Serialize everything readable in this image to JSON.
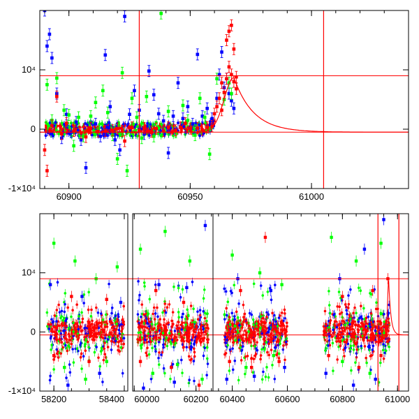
{
  "chart_data": [
    {
      "type": "scatter",
      "title": "",
      "xlabel": "",
      "ylabel": "",
      "xlim": [
        60888,
        61040
      ],
      "ylim": [
        -10000,
        20000
      ],
      "x_ticks": [
        {
          "value": 60900,
          "label": "60900"
        },
        {
          "value": 60950,
          "label": "60950"
        },
        {
          "value": 61000,
          "label": "61000"
        }
      ],
      "y_ticks": [
        {
          "value": 10000,
          "label": "10⁴"
        },
        {
          "value": 0,
          "label": "0"
        },
        {
          "value": -10000,
          "label": "-1×10⁴"
        }
      ],
      "reference_lines": {
        "horizontal": [
          9000,
          -500
        ],
        "vertical": [
          60929,
          61005
        ]
      },
      "model_curve": {
        "baseline": -500,
        "peak_x": 60968,
        "peak_y": 8700,
        "rise_scale": 4,
        "decay_scale": 8,
        "color": "#ff0000"
      },
      "series": [
        {
          "color": "#0000ff",
          "points": [
            [
              60890,
              20000
            ],
            [
              60891,
              14000
            ],
            [
              60892,
              16000
            ],
            [
              60893,
              12000
            ],
            [
              60895,
              6000
            ],
            [
              60897,
              -1500
            ],
            [
              60899,
              2500
            ],
            [
              60901,
              -500
            ],
            [
              60903,
              1200
            ],
            [
              60905,
              -1800
            ],
            [
              60907,
              -6500
            ],
            [
              60909,
              1200
            ],
            [
              60911,
              900
            ],
            [
              60913,
              -1200
            ],
            [
              60915,
              12500
            ],
            [
              60917,
              3800
            ],
            [
              60919,
              -1800
            ],
            [
              60921,
              -3500
            ],
            [
              60923,
              19000
            ],
            [
              60925,
              2500
            ],
            [
              60927,
              6500
            ],
            [
              60929,
              3200
            ],
            [
              60931,
              -800
            ],
            [
              60933,
              9800
            ],
            [
              60935,
              5800
            ],
            [
              60937,
              2600
            ],
            [
              60939,
              1400
            ],
            [
              60941,
              -4000
            ],
            [
              60943,
              2200
            ],
            [
              60945,
              7800
            ],
            [
              60947,
              1800
            ],
            [
              60949,
              3800
            ],
            [
              60951,
              900
            ],
            [
              60953,
              12600
            ],
            [
              60955,
              2200
            ],
            [
              60957,
              3500
            ],
            [
              60959,
              1800
            ],
            [
              60961,
              5200
            ],
            [
              60962,
              9200
            ],
            [
              60963,
              13000
            ],
            [
              60964,
              7000
            ],
            [
              60965,
              8500
            ],
            [
              60966,
              6000
            ],
            [
              60967,
              4800
            ],
            [
              60968,
              3500
            ]
          ]
        },
        {
          "color": "#00ff00",
          "points": [
            [
              60891,
              7500
            ],
            [
              60893,
              1500
            ],
            [
              60895,
              8600
            ],
            [
              60898,
              3200
            ],
            [
              60900,
              2400
            ],
            [
              60902,
              -2800
            ],
            [
              60904,
              2000
            ],
            [
              60906,
              -1200
            ],
            [
              60909,
              2200
            ],
            [
              60911,
              4500
            ],
            [
              60914,
              6500
            ],
            [
              60916,
              2800
            ],
            [
              60918,
              -1000
            ],
            [
              60920,
              -5000
            ],
            [
              60922,
              9500
            ],
            [
              60924,
              -7000
            ],
            [
              60926,
              5200
            ],
            [
              60928,
              2000
            ],
            [
              60930,
              -1500
            ],
            [
              60932,
              5500
            ],
            [
              60935,
              -1200
            ],
            [
              60938,
              19500
            ],
            [
              60941,
              3000
            ],
            [
              60944,
              -500
            ],
            [
              60947,
              4000
            ],
            [
              60949,
              1500
            ],
            [
              60952,
              -1000
            ],
            [
              60954,
              5200
            ],
            [
              60956,
              2000
            ],
            [
              60958,
              -4200
            ],
            [
              60961,
              8500
            ],
            [
              60964,
              5000
            ],
            [
              60966,
              7800
            ],
            [
              60967,
              6000
            ]
          ]
        },
        {
          "color": "#ff0000",
          "points": [
            [
              60890,
              -3500
            ],
            [
              60891,
              -7000
            ],
            [
              60893,
              600
            ],
            [
              60895,
              5500
            ],
            [
              60897,
              -800
            ],
            [
              60899,
              1000
            ],
            [
              60902,
              -300
            ],
            [
              60905,
              -600
            ],
            [
              60907,
              -1300
            ],
            [
              60909,
              200
            ],
            [
              60912,
              -400
            ],
            [
              60915,
              -300
            ],
            [
              60918,
              -200
            ],
            [
              60920,
              100
            ],
            [
              60922,
              -300
            ],
            [
              60923,
              -2000
            ],
            [
              60926,
              300
            ],
            [
              60929,
              -200
            ],
            [
              60931,
              200
            ],
            [
              60934,
              -400
            ],
            [
              60936,
              100
            ],
            [
              60939,
              -300
            ],
            [
              60941,
              300
            ],
            [
              60944,
              -200
            ],
            [
              60946,
              300
            ],
            [
              60948,
              1000
            ],
            [
              60950,
              100
            ],
            [
              60953,
              200
            ],
            [
              60955,
              -100
            ],
            [
              60957,
              300
            ],
            [
              60959,
              500
            ],
            [
              60960,
              2600
            ],
            [
              60961,
              3800
            ],
            [
              60962,
              5200
            ],
            [
              60963,
              7800
            ],
            [
              60963,
              3200
            ],
            [
              60964,
              6200
            ],
            [
              60965,
              15000
            ],
            [
              60965,
              8500
            ],
            [
              60966,
              10500
            ],
            [
              60966,
              16500
            ],
            [
              60967,
              17500
            ],
            [
              60967,
              9200
            ],
            [
              60968,
              8000
            ],
            [
              60968,
              13500
            ],
            [
              60969,
              8800
            ],
            [
              60969,
              6800
            ]
          ]
        }
      ]
    },
    {
      "type": "scatter",
      "title": "",
      "xlabel": "",
      "ylabel": "",
      "ylim": [
        -10000,
        20000
      ],
      "segments": [
        {
          "xlim": [
            58160,
            58410
          ],
          "x_ticks": [
            {
              "value": 58200,
              "label": "58200"
            },
            {
              "value": 58400,
              "label": "58400"
            }
          ]
        },
        {
          "xlim": [
            59995,
            60255
          ],
          "x_ticks": [
            {
              "value": 60000,
              "label": "60000"
            },
            {
              "value": 60200,
              "label": "60200"
            }
          ]
        },
        {
          "xlim": [
            60330,
            61040
          ],
          "x_ticks": [
            {
              "value": 60400,
              "label": "60400"
            },
            {
              "value": 60600,
              "label": "60600"
            },
            {
              "value": 60800,
              "label": "60800"
            },
            {
              "value": 61000,
              "label": "61000"
            }
          ]
        }
      ],
      "y_ticks": [
        {
          "value": 10000,
          "label": "10⁴"
        },
        {
          "value": 0,
          "label": "0"
        },
        {
          "value": -10000,
          "label": "-1×10⁴"
        }
      ],
      "reference_lines": {
        "horizontal": [
          9000,
          -500
        ],
        "vertical": [
          60929,
          61005
        ]
      },
      "season_ranges": [
        [
          58180,
          58400
        ],
        [
          60010,
          60240
        ],
        [
          60370,
          60600
        ],
        [
          60730,
          60970
        ]
      ],
      "series": [
        {
          "color": "#00ff00",
          "points": [
            [
              58200,
              15000
            ],
            [
              58230,
              -6000
            ],
            [
              58260,
              12000
            ],
            [
              58290,
              -8000
            ],
            [
              58320,
              9000
            ],
            [
              58350,
              -5000
            ],
            [
              58380,
              11000
            ],
            [
              60020,
              14000
            ],
            [
              60060,
              -7000
            ],
            [
              60100,
              17000
            ],
            [
              60140,
              -5500
            ],
            [
              60180,
              12000
            ],
            [
              60220,
              -8000
            ],
            [
              60400,
              13000
            ],
            [
              60450,
              -6000
            ],
            [
              60500,
              10000
            ],
            [
              60550,
              -4000
            ],
            [
              60580,
              8000
            ],
            [
              60760,
              16000
            ],
            [
              60800,
              -5000
            ],
            [
              60850,
              12000
            ],
            [
              60900,
              -7000
            ],
            [
              60940,
              15000
            ]
          ]
        },
        {
          "color": "#0000ff",
          "points": [
            [
              58190,
              8000
            ],
            [
              58240,
              -9000
            ],
            [
              58280,
              6000
            ],
            [
              58330,
              -7000
            ],
            [
              58390,
              5000
            ],
            [
              60030,
              -9500
            ],
            [
              60080,
              8000
            ],
            [
              60130,
              -8500
            ],
            [
              60170,
              7500
            ],
            [
              60230,
              18000
            ],
            [
              60380,
              -8000
            ],
            [
              60420,
              9000
            ],
            [
              60480,
              -7500
            ],
            [
              60540,
              7000
            ],
            [
              60590,
              -6000
            ],
            [
              60740,
              -7000
            ],
            [
              60790,
              9000
            ],
            [
              60840,
              -9000
            ],
            [
              60880,
              14000
            ],
            [
              60920,
              -8000
            ],
            [
              60950,
              19000
            ]
          ]
        },
        {
          "color": "#ff0000",
          "points": [
            [
              58200,
              -4000
            ],
            [
              58250,
              6000
            ],
            [
              58300,
              -5000
            ],
            [
              58350,
              5500
            ],
            [
              60020,
              -5000
            ],
            [
              60070,
              7000
            ],
            [
              60120,
              -6000
            ],
            [
              60160,
              5000
            ],
            [
              60210,
              -9000
            ],
            [
              60390,
              -5000
            ],
            [
              60430,
              7000
            ],
            [
              60470,
              -6000
            ],
            [
              60520,
              16000
            ],
            [
              60570,
              -5000
            ],
            [
              60750,
              -4000
            ],
            [
              60800,
              6000
            ],
            [
              60860,
              -6000
            ],
            [
              60910,
              7000
            ],
            [
              60940,
              -4000
            ],
            [
              60965,
              9000
            ]
          ]
        }
      ]
    }
  ]
}
